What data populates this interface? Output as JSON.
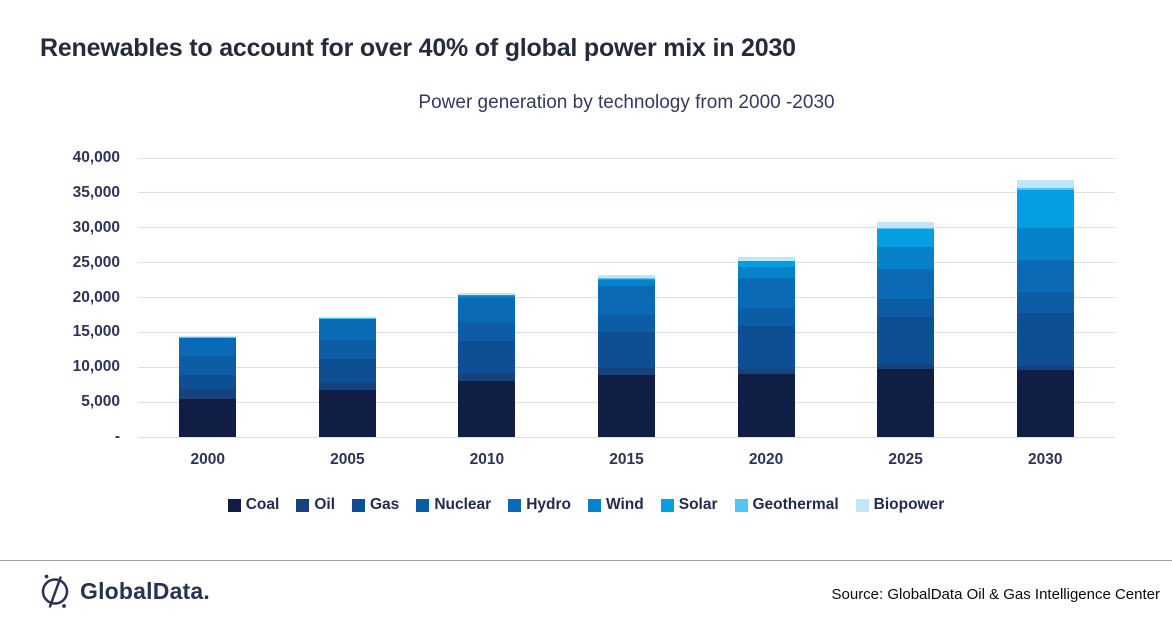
{
  "title": "Renewables to account for over 40% of global power mix in 2030",
  "chart_data": {
    "type": "bar",
    "stacked": true,
    "subtitle": "Power generation by technology from 2000 -2030",
    "categories": [
      "2000",
      "2005",
      "2010",
      "2015",
      "2020",
      "2025",
      "2030"
    ],
    "series": [
      {
        "name": "Coal",
        "color": "#101d45",
        "values": [
          5400,
          6750,
          8100,
          8900,
          9000,
          9800,
          9600
        ]
      },
      {
        "name": "Oil",
        "color": "#16437e",
        "values": [
          1400,
          1000,
          950,
          950,
          780,
          700,
          570
        ]
      },
      {
        "name": "Gas",
        "color": "#0e4f93",
        "values": [
          2150,
          3400,
          4750,
          5250,
          6150,
          6650,
          7600
        ]
      },
      {
        "name": "Nuclear",
        "color": "#0d5ca6",
        "values": [
          2600,
          2750,
          2720,
          2600,
          2620,
          2650,
          3080
        ]
      },
      {
        "name": "Hydro",
        "color": "#0b6ab5",
        "values": [
          2650,
          2950,
          3430,
          3900,
          4250,
          4300,
          4530
        ]
      },
      {
        "name": "Wind",
        "color": "#0682ca",
        "values": [
          30,
          100,
          340,
          840,
          1550,
          3100,
          4530
        ]
      },
      {
        "name": "Solar",
        "color": "#049ee2",
        "values": [
          1,
          4,
          32,
          250,
          830,
          2600,
          5570
        ]
      },
      {
        "name": "Geothermal",
        "color": "#54c4f1",
        "values": [
          52,
          60,
          68,
          80,
          95,
          120,
          180
        ]
      },
      {
        "name": "Biopower",
        "color": "#c2e6f9",
        "values": [
          160,
          230,
          310,
          460,
          590,
          950,
          1150
        ]
      }
    ],
    "ylim": [
      0,
      40000
    ],
    "ytick_step": 5000,
    "ytick_labels": [
      "-",
      "5,000",
      "10,000",
      "15,000",
      "20,000",
      "25,000",
      "30,000",
      "35,000",
      "40,000"
    ],
    "grid": true,
    "legend_position": "bottom"
  },
  "footer": {
    "brand": "GlobalData.",
    "source": "Source: GlobalData Oil & Gas Intelligence Center"
  }
}
